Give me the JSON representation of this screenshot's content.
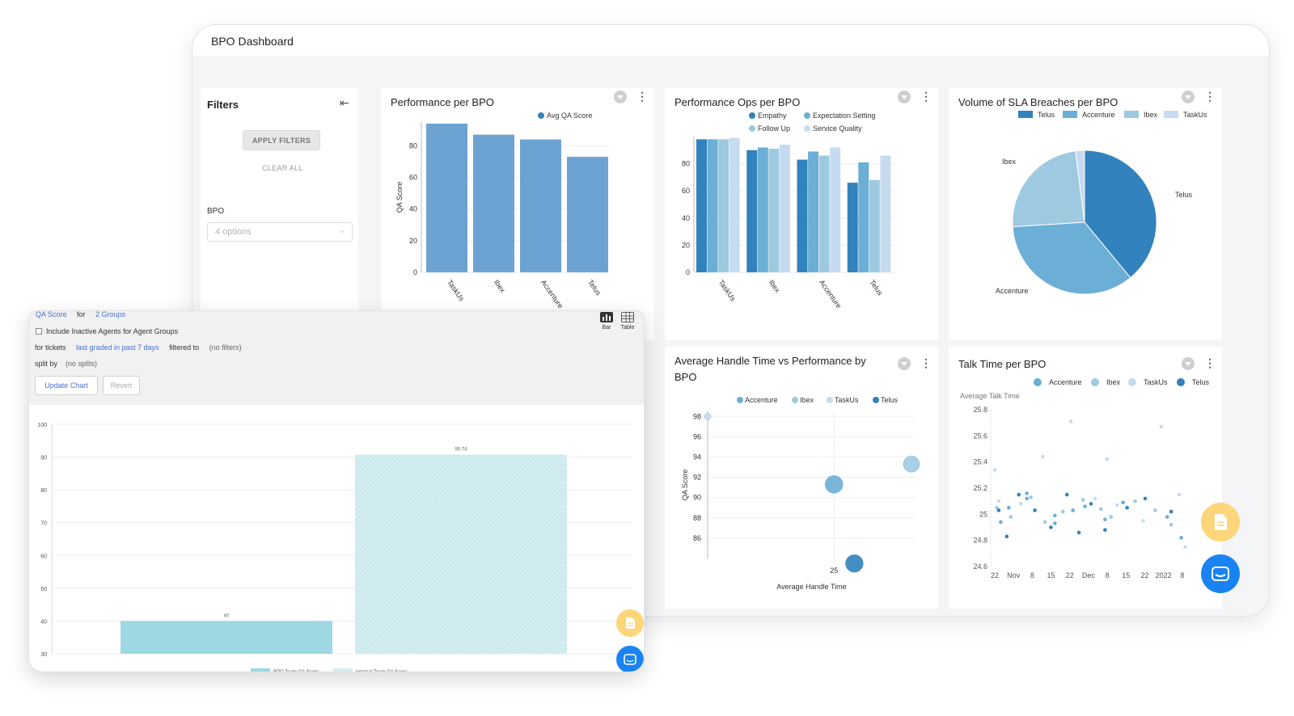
{
  "app": {
    "title": "BPO Dashboard"
  },
  "filters": {
    "title": "Filters",
    "apply_label": "APPLY FILTERS",
    "clear_label": "CLEAR ALL",
    "bpo_label": "BPO",
    "bpo_select_placeholder": "4 options"
  },
  "colors": {
    "bar_blue": "#6da3d2",
    "telus": "#3182bd",
    "accenture": "#6baed6",
    "ibex": "#9ecae1",
    "taskus": "#c6dbef",
    "builder_bar1": "#9dd8e3",
    "builder_bar2": "#d4eef2",
    "fab_orange": "#fdd57a",
    "fab_blue": "#1a83f2"
  },
  "icons": [
    "collapse-left-icon",
    "chevron-down-icon",
    "filter-icon",
    "more-vertical-icon",
    "bar-chart-icon",
    "table-icon",
    "document-icon",
    "chat-icon"
  ],
  "performance_per_bpo": {
    "title": "Performance per BPO",
    "chart_data": {
      "type": "bar",
      "categories": [
        "TaskUs",
        "Ibex",
        "Accenture",
        "Telus"
      ],
      "series": [
        {
          "name": "Avg QA Score",
          "values": [
            94,
            87,
            84,
            73
          ]
        }
      ],
      "ylabel": "QA Score",
      "xlabel": "",
      "ylim": [
        0,
        95
      ],
      "yticks": [
        0,
        20,
        40,
        60,
        80
      ],
      "legend": "top-right",
      "grid": true
    }
  },
  "performance_ops_per_bpo": {
    "title": "Performance Ops per BPO",
    "chart_data": {
      "type": "bar",
      "categories": [
        "TaskUs",
        "Ibex",
        "Accenture",
        "Telus"
      ],
      "series": [
        {
          "name": "Empathy",
          "values": [
            98,
            90,
            83,
            66
          ]
        },
        {
          "name": "Expectation Setting",
          "values": [
            98,
            92,
            89,
            81
          ]
        },
        {
          "name": "Follow Up",
          "values": [
            98,
            91,
            86,
            68
          ]
        },
        {
          "name": "Service Quality",
          "values": [
            99,
            94,
            92,
            86
          ]
        }
      ],
      "ylabel": "",
      "xlabel": "",
      "ylim": [
        0,
        100
      ],
      "yticks": [
        0,
        20,
        40,
        60,
        80
      ],
      "legend": "top",
      "grid": true
    }
  },
  "sla_breaches_per_bpo": {
    "title": "Volume of SLA Breaches per BPO",
    "chart_data": {
      "type": "pie",
      "labels": [
        "Telus",
        "Accenture",
        "Ibex",
        "TaskUs"
      ],
      "values": [
        39,
        35,
        24,
        2
      ],
      "legend": "top-right"
    }
  },
  "aht_vs_performance": {
    "title_line1": "Average Handle Time vs Performance by",
    "title_line2": "BPO",
    "chart_data": {
      "type": "scatter",
      "series": [
        {
          "name": "Accenture",
          "points": [
            {
              "x": 25,
              "y": 91.3
            }
          ]
        },
        {
          "name": "Ibex",
          "points": [
            {
              "x": 28.8,
              "y": 93.3
            }
          ]
        },
        {
          "name": "TaskUs",
          "points": [
            {
              "x": 18.8,
              "y": 98
            }
          ]
        },
        {
          "name": "Telus",
          "points": [
            {
              "x": 26,
              "y": 83.5
            }
          ]
        }
      ],
      "xlabel": "Average Handle Time",
      "ylabel": "QA Score",
      "xticks": [
        25
      ],
      "yticks": [
        86,
        88,
        90,
        92,
        94,
        96,
        98
      ],
      "xlim": [
        18.8,
        29
      ],
      "ylim": [
        84,
        98.5
      ],
      "legend": "top",
      "grid": true
    }
  },
  "talk_time_per_bpo": {
    "title": "Talk Time per BPO",
    "chart_data": {
      "type": "scatter",
      "ylabel": "Average Talk Time",
      "xlabel": "",
      "xticks": [
        "22",
        "Nov",
        "8",
        "15",
        "22",
        "Dec",
        "8",
        "15",
        "22",
        "2022",
        "8"
      ],
      "yticks": [
        24.6,
        24.8,
        25,
        25.2,
        25.4,
        25.6,
        25.8
      ],
      "ylim": [
        24.6,
        25.8
      ],
      "legend": "top",
      "series": [
        {
          "name": "Accenture",
          "points": [
            [
              0.05,
              24.94
            ],
            [
              0.09,
              25.05
            ],
            [
              0.18,
              25.16
            ],
            [
              0.18,
              25.12
            ],
            [
              0.32,
              24.99
            ],
            [
              0.32,
              24.93
            ],
            [
              0.41,
              25.03
            ],
            [
              0.47,
              25.06
            ],
            [
              0.57,
              24.96
            ],
            [
              0.66,
              25.09
            ],
            [
              0.88,
              24.98
            ],
            [
              0.95,
              24.82
            ]
          ]
        },
        {
          "name": "Ibex",
          "points": [
            [
              0.03,
              25.05
            ],
            [
              0.1,
              24.98
            ],
            [
              0.2,
              25.13
            ],
            [
              0.27,
              24.94
            ],
            [
              0.36,
              25.02
            ],
            [
              0.46,
              25.11
            ],
            [
              0.55,
              25.04
            ],
            [
              0.6,
              24.98
            ],
            [
              0.72,
              25.1
            ],
            [
              0.82,
              25.03
            ],
            [
              0.9,
              24.92
            ]
          ]
        },
        {
          "name": "TaskUs",
          "points": [
            [
              0.02,
              25.34
            ],
            [
              0.04,
              25.1
            ],
            [
              0.15,
              25.08
            ],
            [
              0.26,
              25.44
            ],
            [
              0.4,
              25.71
            ],
            [
              0.52,
              25.12
            ],
            [
              0.58,
              25.42
            ],
            [
              0.63,
              25.07
            ],
            [
              0.76,
              24.95
            ],
            [
              0.85,
              25.67
            ],
            [
              0.94,
              25.15
            ],
            [
              0.97,
              24.75
            ]
          ]
        },
        {
          "name": "Telus",
          "points": [
            [
              0.04,
              25.03
            ],
            [
              0.08,
              24.83
            ],
            [
              0.14,
              25.15
            ],
            [
              0.22,
              25.03
            ],
            [
              0.3,
              24.9
            ],
            [
              0.38,
              25.15
            ],
            [
              0.44,
              24.86
            ],
            [
              0.5,
              25.08
            ],
            [
              0.57,
              24.88
            ],
            [
              0.68,
              25.05
            ],
            [
              0.77,
              25.12
            ],
            [
              0.9,
              25.02
            ]
          ]
        }
      ]
    }
  },
  "builder": {
    "metric_link": "QA Score",
    "for_label": "for",
    "groups_link": "2 Groups",
    "include_inactive": "Include Inactive Agents for Agent Groups",
    "for_tickets": "for tickets",
    "date_link": "last graded in past 7 days",
    "filtered_to": "filtered to",
    "no_filters": "(no filters)",
    "split_by": "split by",
    "no_splits": "(no splits)",
    "update_label": "Update Chart",
    "revert_label": "Revert",
    "bar_view": "Bar",
    "table_view": "Table",
    "chart_data": {
      "type": "bar",
      "series": [
        {
          "name": "BPO Team QA Score",
          "values": [
            40
          ]
        },
        {
          "name": "Internal Team QA Score",
          "values": [
            90.74
          ]
        }
      ],
      "data_labels": [
        "40",
        "90.74"
      ],
      "yticks": [
        30,
        40,
        50,
        60,
        70,
        80,
        90,
        100
      ],
      "ylim": [
        30,
        100
      ],
      "legend": "bottom"
    }
  }
}
